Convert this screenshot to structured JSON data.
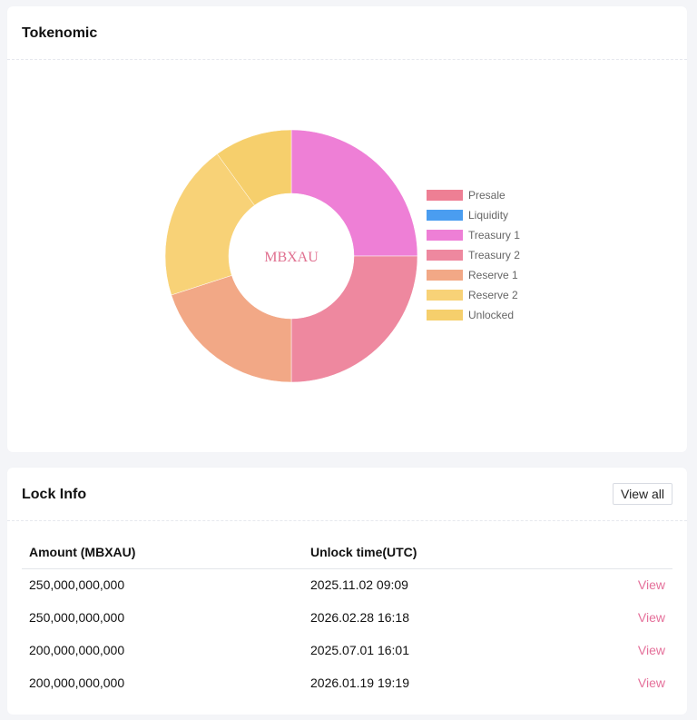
{
  "tokenomic": {
    "title": "Tokenomic",
    "center_label": "MBXAU"
  },
  "chart_data": {
    "type": "pie",
    "donut": true,
    "center_text": "MBXAU",
    "legend_position": "right",
    "categories": [
      "Presale",
      "Liquidity",
      "Treasury 1",
      "Treasury 2",
      "Reserve 1",
      "Reserve 2",
      "Unlocked"
    ],
    "values": [
      0,
      0,
      250000000000,
      250000000000,
      200000000000,
      200000000000,
      100000000000
    ],
    "colors": [
      "#ee7f94",
      "#4a9df0",
      "#ee7fd6",
      "#ee889f",
      "#f2a886",
      "#f8d277",
      "#f6cf6c"
    ]
  },
  "lock_info": {
    "title": "Lock Info",
    "view_all_label": "View all",
    "columns": [
      "Amount (MBXAU)",
      "Unlock time(UTC)"
    ],
    "rows": [
      {
        "amount": "250,000,000,000",
        "unlock_time": "2025.11.02 09:09",
        "action": "View"
      },
      {
        "amount": "250,000,000,000",
        "unlock_time": "2026.02.28 16:18",
        "action": "View"
      },
      {
        "amount": "200,000,000,000",
        "unlock_time": "2025.07.01 16:01",
        "action": "View"
      },
      {
        "amount": "200,000,000,000",
        "unlock_time": "2026.01.19 19:19",
        "action": "View"
      }
    ]
  }
}
